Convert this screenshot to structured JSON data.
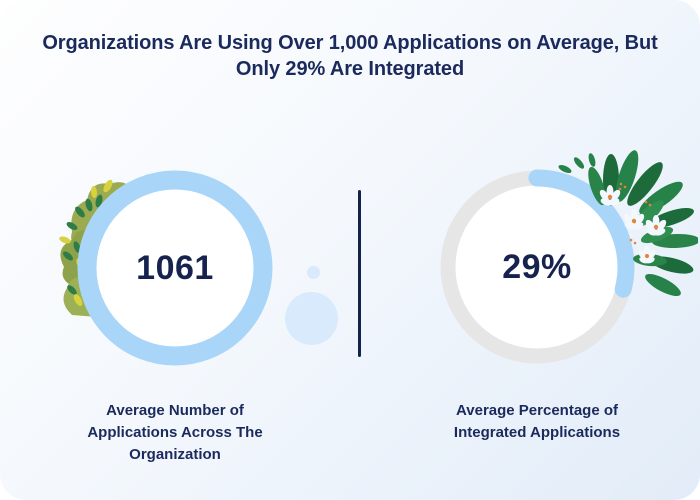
{
  "header": {
    "title": "Organizations Are Using Over 1,000 Applications on Average, But Only 29% Are Integrated"
  },
  "chart_data": [
    {
      "type": "donut",
      "value": 1061,
      "value_label": "1061",
      "percent_filled": 100,
      "caption": "Average Number of Applications Across The Organization",
      "ring_color": "#a9d5f8"
    },
    {
      "type": "donut",
      "value": 29,
      "value_label": "29%",
      "percent_filled": 29,
      "caption": "Average Percentage of Integrated Applications",
      "ring_color": "#a9d5f8",
      "track_color": "#e6e6e7"
    }
  ],
  "colors": {
    "navy_text": "#1b2a5c",
    "divider_navy": "#14224e",
    "accent_blue": "#a9d5f8",
    "track_gray": "#e6e6e7",
    "decor_dot_blue": "#d8eafc"
  },
  "decorations": {
    "left_plant": "olive-bush-with-leaves",
    "right_plant": "green-leaves-with-white-flowers"
  }
}
